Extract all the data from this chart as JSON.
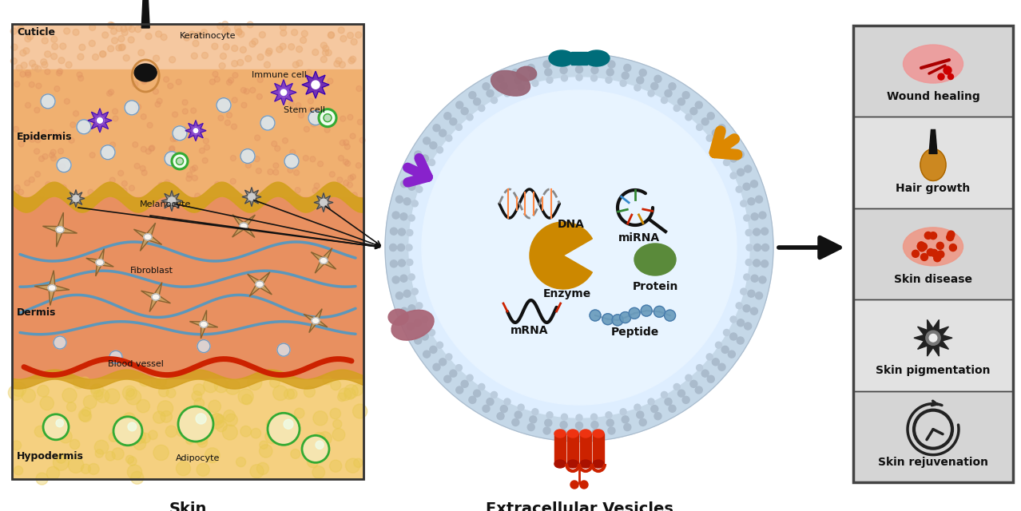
{
  "figure_size": [
    12.78,
    6.4
  ],
  "dpi": 100,
  "bg_color": "#ffffff",
  "effects": [
    {
      "label": "Wound healing",
      "icon": "wound"
    },
    {
      "label": "Hair growth",
      "icon": "hair"
    },
    {
      "label": "Skin disease",
      "icon": "disease"
    },
    {
      "label": "Skin pigmentation",
      "icon": "pigment"
    },
    {
      "label": "Skin rejuvenation",
      "icon": "rejuvenation"
    }
  ],
  "colors": {
    "cuticle": "#f5c8a0",
    "epidermis": "#f0b070",
    "dermis": "#e89060",
    "hypodermis": "#f5d080",
    "gold_band": "#d4a020",
    "hair_dark": "#111111",
    "blood_red": "#cc2200",
    "blood_blue": "#4499cc",
    "fibroblast_fill": "#c8a060",
    "fibroblast_edge": "#8a6030",
    "immune_fill": "#7733cc",
    "immune_center": "#ddbbff",
    "keratinocyte_fill": "#6622bb",
    "stem_edge": "#33aa33",
    "stem_fill": "#eeffee",
    "melanocyte_fill": "#777777",
    "melanocyte_edge": "#333333",
    "adipocyte_fill": "#f5e5b0",
    "adipocyte_edge": "#33aa33",
    "epi_cell": "#d8eeff",
    "epi_cell_edge": "#7799bb",
    "ev_outer_fill": "#c8dae8",
    "ev_inner_fill": "#deeeff",
    "ev_lumen": "#eaf4ff",
    "ev_membrane_line": "#8899aa",
    "teal": "#006d7a",
    "orange_y": "#dd8800",
    "mauve_left": "#aa6677",
    "mauve_right": "#996677",
    "purple_y": "#8822cc",
    "red_coil": "#cc2200",
    "enzyme_color": "#cc8800",
    "protein_color": "#5a8a3a",
    "peptide_color": "#6699bb",
    "text_dark": "#111111",
    "panel_bg1": "#d5d5d5",
    "panel_bg2": "#e2e2e2",
    "panel_border": "#444444"
  }
}
